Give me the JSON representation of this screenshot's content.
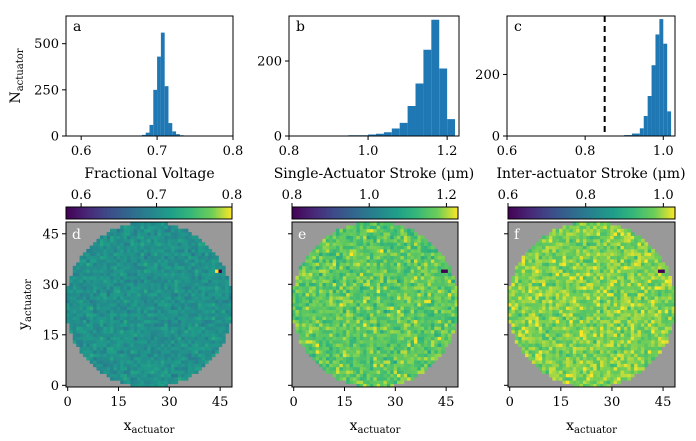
{
  "chart_data": [
    {
      "panel": "a",
      "type": "bar",
      "xlabel": "Fractional Voltage",
      "ylabel": "N",
      "ylabel_sub": "actuator",
      "xlim": [
        0.58,
        0.8
      ],
      "ylim": [
        0,
        650
      ],
      "xticks": [
        "0.6",
        "0.7",
        "0.8"
      ],
      "xtick_values": [
        0.6,
        0.7,
        0.8
      ],
      "yticks": [
        "0",
        "250",
        "500"
      ],
      "ytick_values": [
        0,
        250,
        500
      ],
      "bin_edges": [
        0.68,
        0.685,
        0.69,
        0.695,
        0.7,
        0.705,
        0.71,
        0.715,
        0.72,
        0.725,
        0.73,
        0.735,
        0.74
      ],
      "counts": [
        6,
        18,
        60,
        250,
        430,
        560,
        270,
        70,
        25,
        10,
        4,
        2
      ],
      "color": "#1f77b4"
    },
    {
      "panel": "b",
      "type": "bar",
      "xlabel": "Single-Actuator Stroke (μm)",
      "xlim": [
        0.8,
        1.23
      ],
      "ylim": [
        0,
        320
      ],
      "xticks": [
        "0.8",
        "1.0",
        "1.2"
      ],
      "xtick_values": [
        0.8,
        1.0,
        1.2
      ],
      "yticks": [
        "0",
        "200"
      ],
      "ytick_values": [
        0,
        200
      ],
      "bin_edges": [
        0.9,
        0.95,
        1.0,
        1.02,
        1.04,
        1.06,
        1.08,
        1.1,
        1.12,
        1.14,
        1.16,
        1.18,
        1.2,
        1.22
      ],
      "counts": [
        1,
        2,
        4,
        6,
        10,
        20,
        35,
        80,
        140,
        230,
        310,
        180,
        45
      ],
      "color": "#1f77b4"
    },
    {
      "panel": "c",
      "type": "bar",
      "xlabel": "Inter-actuator Stroke (μm)",
      "xlim": [
        0.6,
        1.03
      ],
      "ylim": [
        0,
        390
      ],
      "xticks": [
        "0.6",
        "0.8",
        "1.0"
      ],
      "xtick_values": [
        0.6,
        0.8,
        1.0
      ],
      "yticks": [
        "0",
        "200"
      ],
      "ytick_values": [
        0,
        200
      ],
      "vline": 0.85,
      "bin_edges": [
        0.85,
        0.9,
        0.92,
        0.94,
        0.95,
        0.96,
        0.97,
        0.98,
        0.99,
        1.0,
        1.01,
        1.02
      ],
      "counts": [
        1,
        3,
        8,
        25,
        65,
        130,
        230,
        330,
        380,
        300,
        80
      ],
      "color": "#1f77b4"
    },
    {
      "panel": "d",
      "type": "heatmap",
      "xlabel": "x",
      "xlabel_sub": "actuator",
      "ylabel": "y",
      "ylabel_sub": "actuator",
      "xlim": [
        0,
        49
      ],
      "ylim": [
        0,
        49
      ],
      "xticks": [
        "0",
        "15",
        "30",
        "45"
      ],
      "xtick_values": [
        0,
        15,
        30,
        45
      ],
      "yticks": [
        "0",
        "15",
        "30",
        "45"
      ],
      "ytick_values": [
        0,
        15,
        30,
        45
      ],
      "colorbar_ticks": [
        "0.6",
        "0.7",
        "0.8"
      ],
      "colorbar_values": [
        0.6,
        0.7,
        0.8
      ],
      "vmin": 0.58,
      "vmax": 0.8,
      "mean": 0.705,
      "spread": 0.012,
      "defects": [
        {
          "x": 44,
          "y": 34,
          "v": 0.8
        },
        {
          "x": 45,
          "y": 34,
          "v": 0.56
        }
      ],
      "background": "#999999"
    },
    {
      "panel": "e",
      "type": "heatmap",
      "xlabel": "x",
      "xlabel_sub": "actuator",
      "xlim": [
        0,
        49
      ],
      "ylim": [
        0,
        49
      ],
      "xticks": [
        "0",
        "15",
        "30",
        "45"
      ],
      "xtick_values": [
        0,
        15,
        30,
        45
      ],
      "colorbar_ticks": [
        "0.8",
        "1.0",
        "1.2"
      ],
      "colorbar_values": [
        0.8,
        1.0,
        1.2
      ],
      "vmin": 0.8,
      "vmax": 1.23,
      "mean": 1.16,
      "spread": 0.035,
      "defects": [
        {
          "x": 44,
          "y": 34,
          "v": 0.7
        },
        {
          "x": 45,
          "y": 34,
          "v": 0.7
        }
      ],
      "background": "#999999"
    },
    {
      "panel": "f",
      "type": "heatmap",
      "xlabel": "x",
      "xlabel_sub": "actuator",
      "xlim": [
        0,
        49
      ],
      "ylim": [
        0,
        49
      ],
      "xticks": [
        "0",
        "15",
        "30",
        "45"
      ],
      "xtick_values": [
        0,
        15,
        30,
        45
      ],
      "colorbar_ticks": [
        "0.6",
        "0.8",
        "1.0"
      ],
      "colorbar_values": [
        0.6,
        0.8,
        1.0
      ],
      "vmin": 0.6,
      "vmax": 1.03,
      "mean": 0.98,
      "spread": 0.03,
      "defects": [
        {
          "x": 44,
          "y": 34,
          "v": 0.5
        },
        {
          "x": 45,
          "y": 34,
          "v": 0.5
        }
      ],
      "background": "#999999"
    }
  ]
}
